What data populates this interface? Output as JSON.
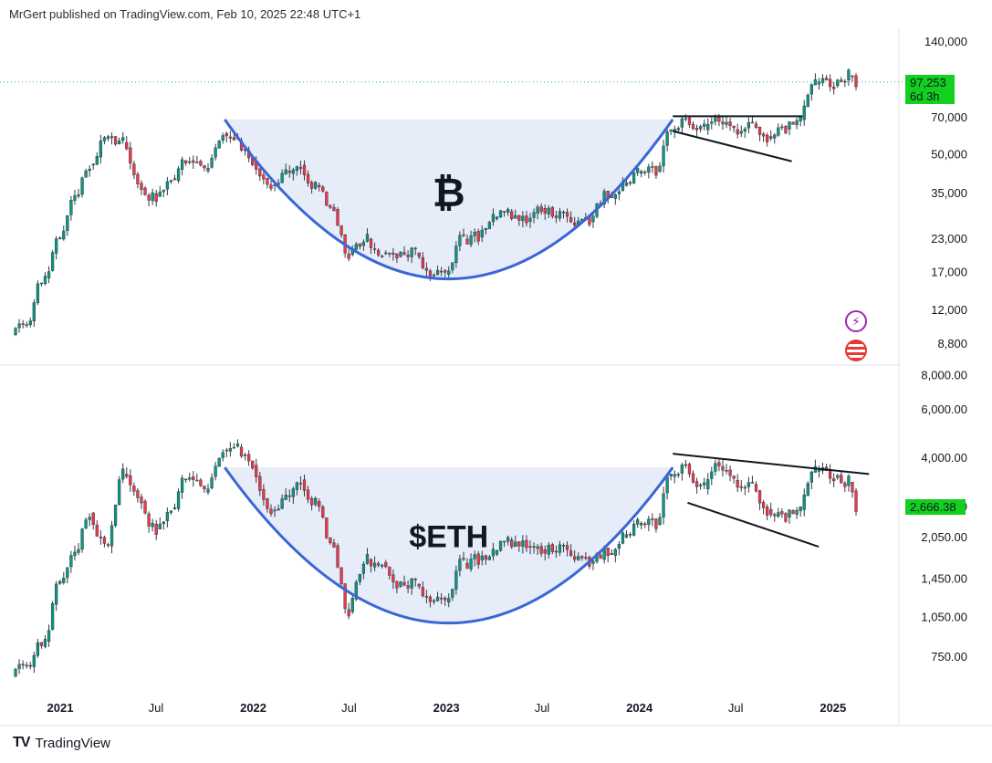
{
  "header": {
    "publisher": "MrGert published on TradingView.com, Feb 10, 2025 22:48 UTC+1"
  },
  "footer": {
    "brand": "TradingView",
    "logo_icon": "tradingview-logo-icon"
  },
  "colors": {
    "up": "#089981",
    "down": "#f23645",
    "candle": "#363a45",
    "cup_line": "#3a66d6",
    "cup_fill": "#dfe6f7",
    "price_tag": "#11d01e",
    "dotted": "#22ab94",
    "grid": "#e0e3eb"
  },
  "x_axis": {
    "labels": [
      {
        "text": "2021",
        "bold": true
      },
      {
        "text": "Jul",
        "bold": false
      },
      {
        "text": "2022",
        "bold": true
      },
      {
        "text": "Jul",
        "bold": false
      },
      {
        "text": "2023",
        "bold": true
      },
      {
        "text": "Jul",
        "bold": false
      },
      {
        "text": "2024",
        "bold": true
      },
      {
        "text": "Jul",
        "bold": false
      },
      {
        "text": "2025",
        "bold": true
      }
    ]
  },
  "icons": [
    {
      "name": "lightning-icon",
      "color": "#9c27b0"
    },
    {
      "name": "us-flag-icon",
      "color": "#e53935"
    }
  ],
  "chart_data": [
    {
      "type": "candlestick",
      "asset_label": "₿",
      "scale": "log",
      "ylim": [
        7900,
        150000
      ],
      "y_ticks": [
        "140,000",
        "70,000",
        "50,000",
        "35,000",
        "23,000",
        "17,000",
        "12,000",
        "8,800"
      ],
      "y_tick_values": [
        140000,
        70000,
        50000,
        35000,
        23000,
        17000,
        12000,
        8800
      ],
      "last_price": "97,253",
      "last_price_value": 97253,
      "countdown": "6d 3h",
      "x": [
        "2020-10-05",
        "2020-11-02",
        "2020-12-07",
        "2021-01-04",
        "2021-02-01",
        "2021-03-01",
        "2021-04-05",
        "2021-05-03",
        "2021-06-07",
        "2021-07-05",
        "2021-08-02",
        "2021-09-06",
        "2021-10-04",
        "2021-11-08",
        "2021-12-06",
        "2022-01-03",
        "2022-02-07",
        "2022-03-07",
        "2022-04-04",
        "2022-05-02",
        "2022-06-06",
        "2022-07-04",
        "2022-08-08",
        "2022-09-05",
        "2022-10-03",
        "2022-11-07",
        "2022-12-05",
        "2023-01-02",
        "2023-02-06",
        "2023-03-06",
        "2023-04-03",
        "2023-05-01",
        "2023-06-05",
        "2023-07-03",
        "2023-08-07",
        "2023-09-04",
        "2023-10-02",
        "2023-11-06",
        "2023-12-04",
        "2024-01-01",
        "2024-02-05",
        "2024-03-04",
        "2024-04-01",
        "2024-05-06",
        "2024-06-03",
        "2024-07-01",
        "2024-08-05",
        "2024-09-02",
        "2024-10-07",
        "2024-11-04",
        "2024-12-02",
        "2025-01-06",
        "2025-02-03"
      ],
      "close": [
        10500,
        16000,
        23000,
        34000,
        45000,
        58000,
        56000,
        37000,
        34000,
        40000,
        47000,
        43000,
        61000,
        57000,
        47000,
        38000,
        43000,
        45000,
        38000,
        30000,
        20000,
        23000,
        20000,
        19500,
        20500,
        16500,
        16800,
        23000,
        23500,
        28000,
        29500,
        27000,
        30500,
        29200,
        26000,
        27000,
        34500,
        37500,
        42500,
        43000,
        61000,
        70000,
        63000,
        67000,
        62500,
        66000,
        59000,
        63500,
        69000,
        96000,
        94000,
        104000,
        97253
      ],
      "cup": {
        "from": "2021-11-08",
        "to": "2024-03-04",
        "rim": 69000,
        "bottom": 16000
      },
      "flag_top": {
        "from": "2024-03-04",
        "to": "2024-11-04",
        "value": 71000
      },
      "flag_bottom": {
        "from": "2024-03-04",
        "to": "2024-10-15",
        "from_value": 62000,
        "to_value": 47000
      }
    },
    {
      "type": "candlestick",
      "asset_label": "$ETH",
      "scale": "log",
      "ylim": [
        620,
        8100
      ],
      "y_ticks": [
        "8,000.00",
        "6,000.00",
        "4,000.00",
        "2,650.00",
        "2,050.00",
        "1,450.00",
        "1,050.00",
        "750.00"
      ],
      "y_tick_values": [
        8000,
        6000,
        4000,
        2650,
        2050,
        1450,
        1050,
        750
      ],
      "last_price": "2,666.38",
      "last_price_value": 2666.38,
      "x": [
        "2020-10-05",
        "2020-11-02",
        "2020-12-07",
        "2021-01-04",
        "2021-02-01",
        "2021-03-01",
        "2021-04-05",
        "2021-05-03",
        "2021-06-07",
        "2021-07-05",
        "2021-08-02",
        "2021-09-06",
        "2021-10-04",
        "2021-11-08",
        "2021-12-06",
        "2022-01-03",
        "2022-02-07",
        "2022-03-07",
        "2022-04-04",
        "2022-05-02",
        "2022-06-06",
        "2022-07-04",
        "2022-08-08",
        "2022-09-05",
        "2022-10-03",
        "2022-11-07",
        "2022-12-05",
        "2023-01-02",
        "2023-02-06",
        "2023-03-06",
        "2023-04-03",
        "2023-05-01",
        "2023-06-05",
        "2023-07-03",
        "2023-08-07",
        "2023-09-04",
        "2023-10-02",
        "2023-11-06",
        "2023-12-04",
        "2024-01-01",
        "2024-02-05",
        "2024-03-04",
        "2024-04-01",
        "2024-05-06",
        "2024-06-03",
        "2024-07-01",
        "2024-08-05",
        "2024-09-02",
        "2024-10-07",
        "2024-11-04",
        "2024-12-02",
        "2025-01-06",
        "2025-02-03"
      ],
      "close": [
        700,
        850,
        1400,
        1800,
        2500,
        1900,
        3500,
        2800,
        2200,
        2600,
        3400,
        3000,
        4300,
        4400,
        3800,
        2600,
        2900,
        3300,
        2800,
        1900,
        1100,
        1700,
        1650,
        1350,
        1400,
        1200,
        1200,
        1650,
        1700,
        1800,
        2000,
        1900,
        1850,
        1900,
        1700,
        1650,
        1800,
        2050,
        2300,
        2300,
        3400,
        3800,
        3100,
        3700,
        3300,
        3200,
        2600,
        2450,
        2600,
        3600,
        3400,
        3300,
        2666.38
      ],
      "cup": {
        "from": "2021-11-08",
        "to": "2024-03-04",
        "rim": 3700,
        "bottom": 1000
      },
      "wedge_top": {
        "from": "2024-03-04",
        "to": "2025-03-10",
        "from_value": 4150,
        "to_value": 3500
      },
      "wedge_bottom": {
        "from": "2024-04-01",
        "to": "2024-12-05",
        "from_value": 2750,
        "to_value": 1900
      }
    }
  ]
}
